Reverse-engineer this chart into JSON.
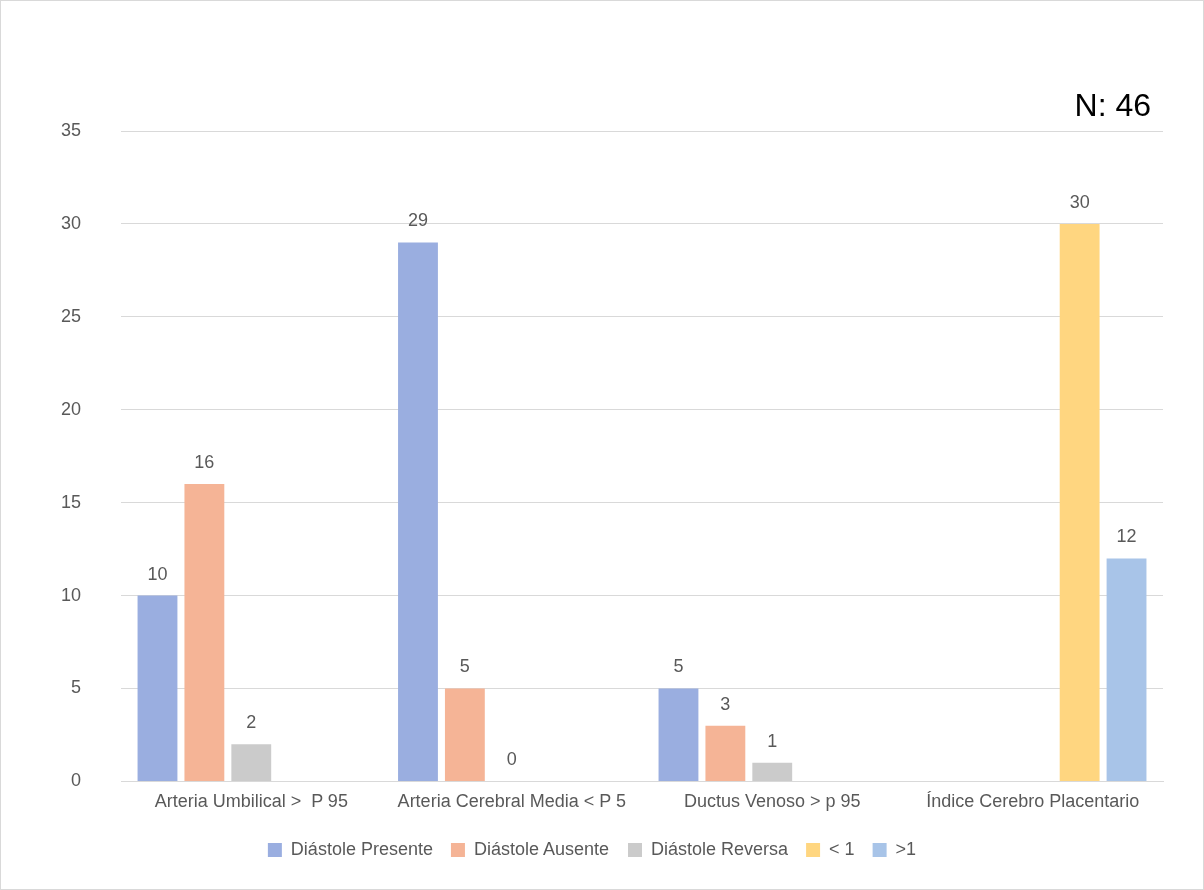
{
  "chart_data": {
    "type": "bar",
    "categories": [
      "Arteria Umbilical >  P 95",
      "Arteria Cerebral Media < P 5",
      "Ductus Venoso > p 95",
      "Índice Cerebro Placentario"
    ],
    "series": [
      {
        "name": "Diástole Presente",
        "color": "#9aaee0",
        "values": [
          10,
          29,
          5,
          null
        ]
      },
      {
        "name": "Diástole Ausente",
        "color": "#f5b496",
        "values": [
          16,
          5,
          3,
          null
        ]
      },
      {
        "name": "Diástole Reversa",
        "color": "#cbcbcb",
        "values": [
          2,
          0,
          1,
          null
        ]
      },
      {
        "name": "< 1",
        "color": "#ffd680",
        "values": [
          null,
          null,
          null,
          30
        ]
      },
      {
        "name": ">1",
        "color": "#a8c4e8",
        "values": [
          null,
          null,
          null,
          12
        ]
      }
    ],
    "ylim": [
      0,
      35
    ],
    "yticks": [
      0,
      5,
      10,
      15,
      20,
      25,
      30,
      35
    ],
    "grid": "y",
    "legend": "bottom",
    "data_labels": true,
    "annotations": [
      "N: 46"
    ]
  }
}
